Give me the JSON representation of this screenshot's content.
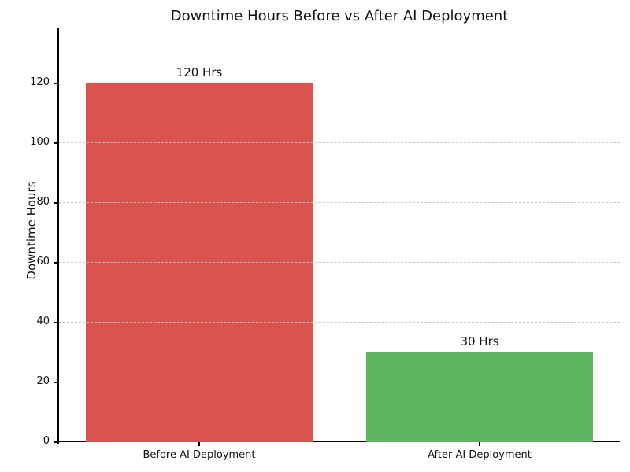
{
  "chart_data": {
    "type": "bar",
    "title": "Downtime Hours Before vs After AI Deployment",
    "ylabel": "Downtime Hours",
    "xlabel": "",
    "categories": [
      "Before AI Deployment",
      "After AI Deployment"
    ],
    "values": [
      120,
      30
    ],
    "bar_labels": [
      "120 Hrs",
      "30 Hrs"
    ],
    "bar_colors": [
      "#d9534f",
      "#5cb85c"
    ],
    "yticks": [
      0,
      20,
      40,
      60,
      80,
      100,
      120
    ],
    "ylim": [
      0,
      138.7
    ],
    "grid": "horizontal-dashed",
    "grid_color": "#bebebe",
    "legend": "none",
    "spines": [
      "left",
      "bottom"
    ],
    "background_color": "#ffffff"
  }
}
